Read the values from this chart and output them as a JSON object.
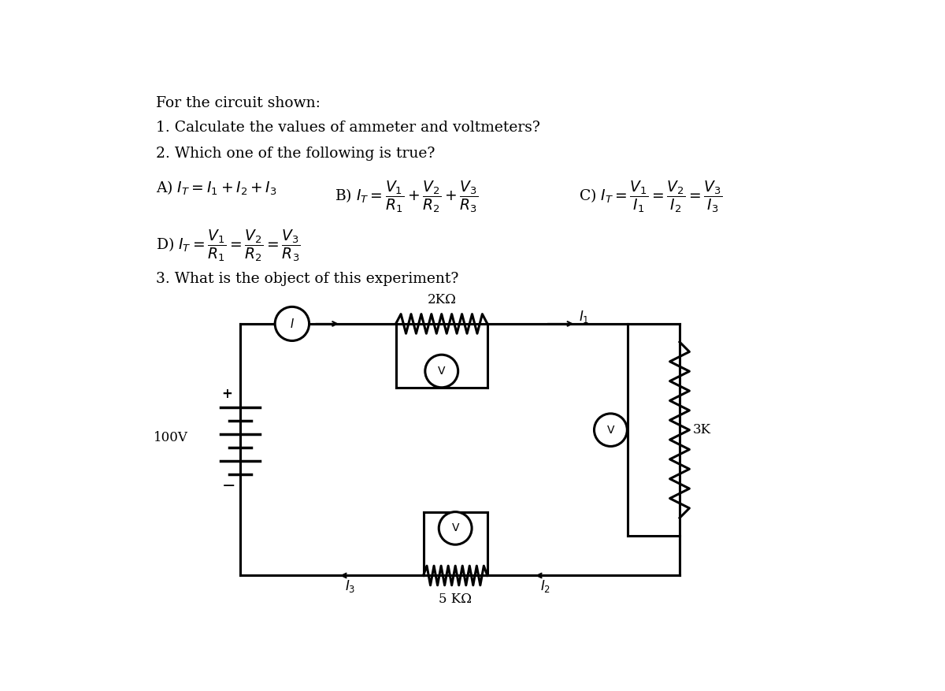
{
  "title_text": "For the circuit shown:",
  "q1": "1. Calculate the values of ammeter and voltmeters?",
  "q2": "2. Which one of the following is true?",
  "q3": "3. What is the object of this experiment?",
  "voltage": "100V",
  "r1_label": "2KΩ",
  "r2_label": "3K",
  "r3_label": "5 KΩ",
  "bg_color": "#ffffff",
  "text_color": "#000000",
  "line_color": "#000000",
  "fs_main": 13.5,
  "fs_circuit": 12,
  "lw_circuit": 2.2
}
